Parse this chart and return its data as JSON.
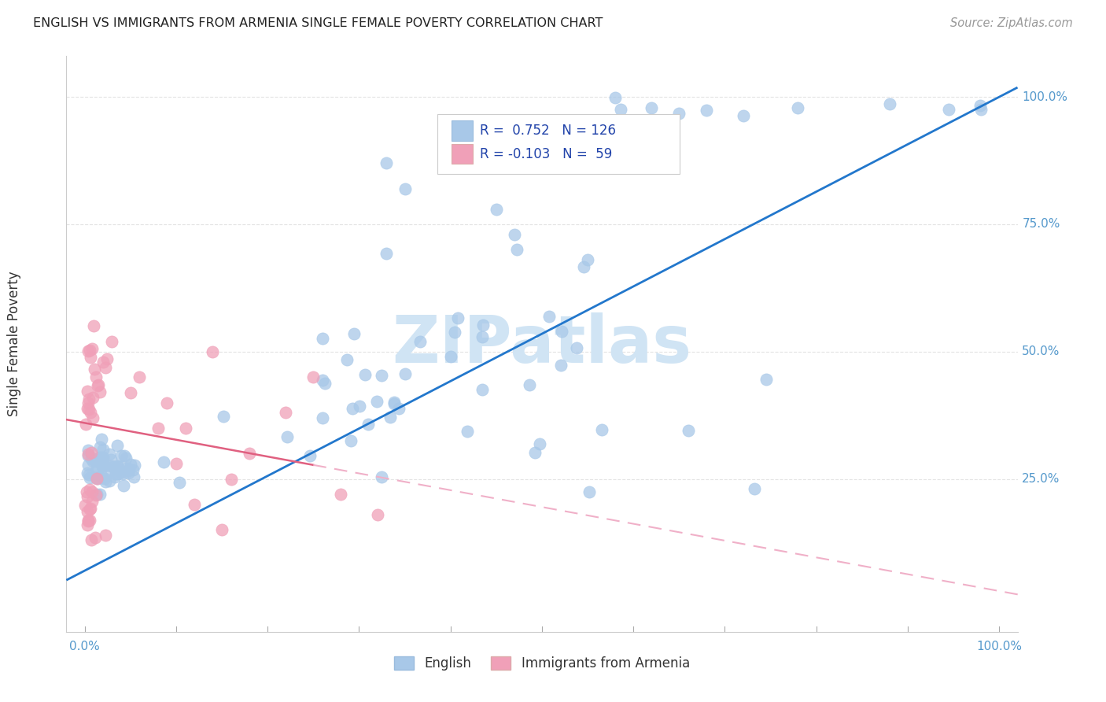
{
  "title": "ENGLISH VS IMMIGRANTS FROM ARMENIA SINGLE FEMALE POVERTY CORRELATION CHART",
  "source": "Source: ZipAtlas.com",
  "ylabel": "Single Female Poverty",
  "legend_english": "English",
  "legend_armenia": "Immigrants from Armenia",
  "R_english": 0.752,
  "N_english": 126,
  "R_armenia": -0.103,
  "N_armenia": 59,
  "english_color": "#a8c8e8",
  "armenia_color": "#f0a0b8",
  "english_line_color": "#2277cc",
  "armenia_line_solid_color": "#e06080",
  "armenia_line_dash_color": "#f0b0c8",
  "watermark_color": "#d0e4f4",
  "background_color": "#ffffff",
  "grid_color": "#dddddd",
  "axis_label_color": "#5599cc",
  "title_color": "#222222",
  "source_color": "#999999"
}
